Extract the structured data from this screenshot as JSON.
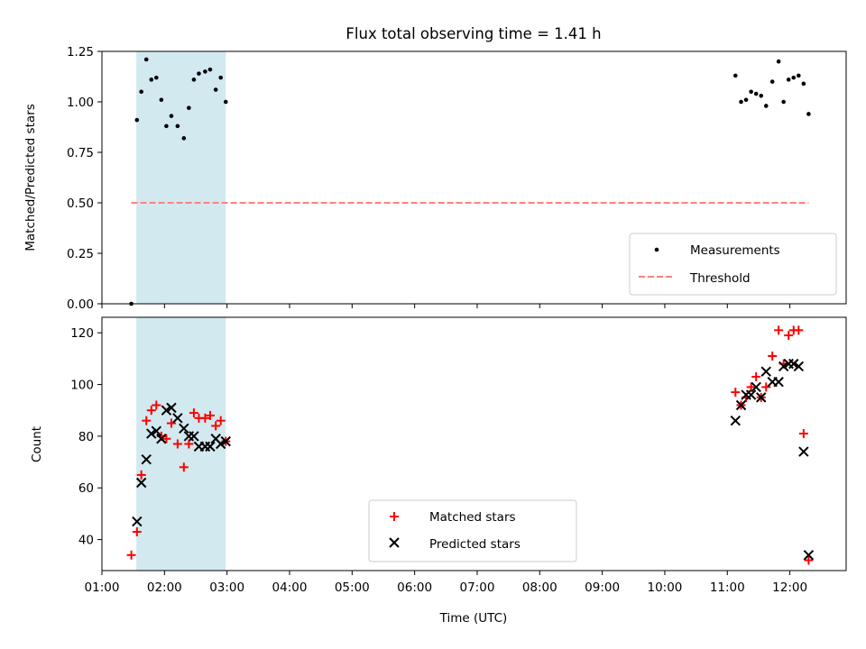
{
  "chart_data": {
    "title": "Flux total observing time = 1.41 h",
    "xlabel": "Time (UTC)",
    "xlim": [
      1.0,
      12.9
    ],
    "x_ticks": [
      1,
      2,
      3,
      4,
      5,
      6,
      7,
      8,
      9,
      10,
      11,
      12
    ],
    "x_tick_labels": [
      "01:00",
      "02:00",
      "03:00",
      "04:00",
      "05:00",
      "06:00",
      "07:00",
      "08:00",
      "09:00",
      "10:00",
      "11:00",
      "12:00"
    ],
    "shaded_interval": {
      "start": 1.55,
      "end": 2.98,
      "color": "#d2e9f0"
    },
    "panels": [
      {
        "type": "scatter",
        "ylabel": "Matched/Predicted stars",
        "ylim": [
          0,
          1.25
        ],
        "y_ticks": [
          0,
          0.25,
          0.5,
          0.75,
          1.0,
          1.25
        ],
        "y_tick_labels": [
          "0.00",
          "0.25",
          "0.50",
          "0.75",
          "1.00",
          "1.25"
        ],
        "legend_position": "lower-right",
        "series": [
          {
            "name": "Measurements",
            "marker": "dot",
            "color": "#000000",
            "x": [
              1.47,
              1.56,
              1.63,
              1.71,
              1.79,
              1.87,
              1.95,
              2.03,
              2.11,
              2.21,
              2.31,
              2.39,
              2.47,
              2.55,
              2.65,
              2.73,
              2.82,
              2.9,
              2.98,
              11.13,
              11.22,
              11.3,
              11.38,
              11.46,
              11.54,
              11.62,
              11.72,
              11.82,
              11.9,
              11.98,
              12.06,
              12.14,
              12.22,
              12.3
            ],
            "y": [
              0.0,
              0.91,
              1.05,
              1.21,
              1.11,
              1.12,
              1.01,
              0.88,
              0.93,
              0.88,
              0.82,
              0.97,
              1.11,
              1.14,
              1.15,
              1.16,
              1.06,
              1.12,
              1.0,
              1.13,
              1.0,
              1.01,
              1.05,
              1.04,
              1.03,
              0.98,
              1.1,
              1.2,
              1.0,
              1.11,
              1.12,
              1.13,
              1.09,
              0.94
            ]
          },
          {
            "name": "Threshold",
            "marker": "dashed-line",
            "color": "#ff8080",
            "x": [
              1.47,
              12.3
            ],
            "y": [
              0.5,
              0.5
            ]
          }
        ]
      },
      {
        "type": "scatter",
        "ylabel": "Count",
        "ylim": [
          28,
          126
        ],
        "y_ticks": [
          40,
          60,
          80,
          100,
          120
        ],
        "y_tick_labels": [
          "40",
          "60",
          "80",
          "100",
          "120"
        ],
        "legend_position": "lower-center",
        "series": [
          {
            "name": "Matched stars",
            "marker": "plus",
            "color": "#ff0000",
            "x": [
              1.47,
              1.56,
              1.63,
              1.71,
              1.79,
              1.87,
              1.95,
              2.03,
              2.11,
              2.21,
              2.31,
              2.39,
              2.47,
              2.55,
              2.65,
              2.73,
              2.82,
              2.9,
              2.98,
              11.13,
              11.22,
              11.3,
              11.38,
              11.46,
              11.54,
              11.62,
              11.72,
              11.82,
              11.9,
              11.98,
              12.06,
              12.14,
              12.22,
              12.3
            ],
            "y": [
              34,
              43,
              65,
              86,
              90,
              92,
              80,
              79,
              85,
              77,
              68,
              77,
              89,
              87,
              87,
              88,
              84,
              86,
              78,
              97,
              92,
              95,
              99,
              103,
              95,
              99,
              111,
              121,
              108,
              119,
              121,
              121,
              81,
              32
            ]
          },
          {
            "name": "Predicted stars",
            "marker": "x",
            "color": "#000000",
            "x": [
              1.56,
              1.63,
              1.71,
              1.79,
              1.87,
              1.95,
              2.03,
              2.11,
              2.21,
              2.31,
              2.39,
              2.47,
              2.55,
              2.65,
              2.73,
              2.82,
              2.9,
              2.98,
              11.13,
              11.22,
              11.3,
              11.38,
              11.46,
              11.54,
              11.62,
              11.72,
              11.82,
              11.9,
              11.98,
              12.06,
              12.14,
              12.22,
              12.3
            ],
            "y": [
              47,
              62,
              71,
              81,
              82,
              79,
              90,
              91,
              87,
              83,
              80,
              80,
              76,
              76,
              76,
              79,
              77,
              78,
              86,
              92,
              96,
              96,
              99,
              95,
              105,
              101,
              101,
              107,
              108,
              108,
              107,
              74,
              34
            ]
          }
        ]
      }
    ]
  }
}
